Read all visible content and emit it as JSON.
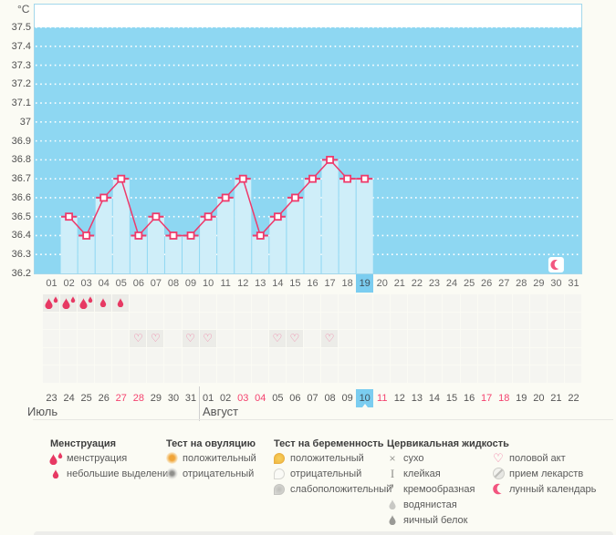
{
  "chart_data": {
    "type": "line",
    "title": "",
    "unit": "°C",
    "ylim": [
      36.2,
      37.5
    ],
    "y_tick_labels": [
      "37.5",
      "37.4",
      "37.3",
      "37.2",
      "37.1",
      "37",
      "36.9",
      "36.8",
      "36.7",
      "36.6",
      "36.5",
      "36.4",
      "36.3",
      "36.2"
    ],
    "x_categories": [
      "01",
      "02",
      "03",
      "04",
      "05",
      "06",
      "07",
      "08",
      "09",
      "10",
      "11",
      "12",
      "13",
      "14",
      "15",
      "16",
      "17",
      "18",
      "19",
      "20",
      "21",
      "22",
      "23",
      "24",
      "25",
      "26",
      "27",
      "28",
      "29",
      "30",
      "31"
    ],
    "selected_day": "19",
    "values": [
      null,
      36.5,
      36.4,
      36.6,
      36.7,
      36.4,
      36.5,
      36.4,
      36.4,
      36.5,
      36.6,
      36.7,
      36.4,
      36.5,
      36.6,
      36.7,
      36.8,
      36.7,
      36.7,
      null,
      null,
      null,
      null,
      null,
      null,
      null,
      null,
      null,
      null,
      null,
      null
    ],
    "grid": "dotted-white-horizontal",
    "legend_position": "bottom"
  },
  "events": {
    "menstruation_days": [
      "01",
      "02",
      "03"
    ],
    "spotting_days": [
      "04",
      "05"
    ],
    "intercourse_days": [
      "06",
      "07",
      "09",
      "10",
      "14",
      "15",
      "17"
    ],
    "lunar_calendar_day": "30"
  },
  "calendar": {
    "months": [
      {
        "label": "Июль",
        "dates": [
          {
            "d": "23"
          },
          {
            "d": "24"
          },
          {
            "d": "25"
          },
          {
            "d": "26"
          },
          {
            "d": "27",
            "red": true
          },
          {
            "d": "28",
            "red": true
          },
          {
            "d": "29"
          },
          {
            "d": "30"
          },
          {
            "d": "31"
          }
        ]
      },
      {
        "label": "Август",
        "dates": [
          {
            "d": "01"
          },
          {
            "d": "02"
          },
          {
            "d": "03",
            "red": true
          },
          {
            "d": "04",
            "red": true
          },
          {
            "d": "05"
          },
          {
            "d": "06"
          },
          {
            "d": "07"
          },
          {
            "d": "08"
          },
          {
            "d": "09"
          },
          {
            "d": "10",
            "today": true
          },
          {
            "d": "11",
            "red": true
          },
          {
            "d": "12"
          },
          {
            "d": "13"
          },
          {
            "d": "14"
          },
          {
            "d": "15"
          },
          {
            "d": "16"
          },
          {
            "d": "17",
            "red": true
          },
          {
            "d": "18",
            "red": true
          },
          {
            "d": "19"
          },
          {
            "d": "20"
          },
          {
            "d": "21"
          },
          {
            "d": "22"
          }
        ]
      }
    ]
  },
  "legend": {
    "groups": [
      {
        "title": "Менструация",
        "items": [
          {
            "icon": "menstruation",
            "label": "менструация"
          },
          {
            "icon": "spotting",
            "label": "небольшие выделения"
          }
        ]
      },
      {
        "title": "Тест на овуляцию",
        "items": [
          {
            "icon": "ovulation-positive",
            "label": "положительный"
          },
          {
            "icon": "ovulation-negative",
            "label": "отрицательный"
          }
        ]
      },
      {
        "title": "Тест на беременность",
        "items": [
          {
            "icon": "pregnancy-positive",
            "label": "положительный"
          },
          {
            "icon": "pregnancy-negative",
            "label": "отрицательный"
          },
          {
            "icon": "pregnancy-weak-positive",
            "label": "слабоположительный"
          }
        ]
      },
      {
        "title": "Цервикальная жидкость",
        "items": [
          {
            "icon": "dry",
            "label": "сухо"
          },
          {
            "icon": "sticky",
            "label": "клейкая"
          },
          {
            "icon": "creamy",
            "label": "кремообразная"
          },
          {
            "icon": "watery",
            "label": "водянистая"
          },
          {
            "icon": "eggwhite",
            "label": "яичный белок"
          }
        ]
      },
      {
        "title": "",
        "items": [
          {
            "icon": "intercourse",
            "label": "половой акт"
          },
          {
            "icon": "medication",
            "label": "прием лекарств"
          },
          {
            "icon": "lunar",
            "label": "лунный календарь"
          }
        ]
      }
    ]
  },
  "colors": {
    "plot_background": "#8ed7f2",
    "bar": "#cfeef9",
    "line": "#ee3a6b",
    "selected_day_bg": "#7bcdf0",
    "weekend_date": "#f4426e",
    "drop": "#e73963",
    "heart": "#ef6f9a",
    "moon": "#f2557f",
    "plot_border": "#a3d7eb"
  }
}
